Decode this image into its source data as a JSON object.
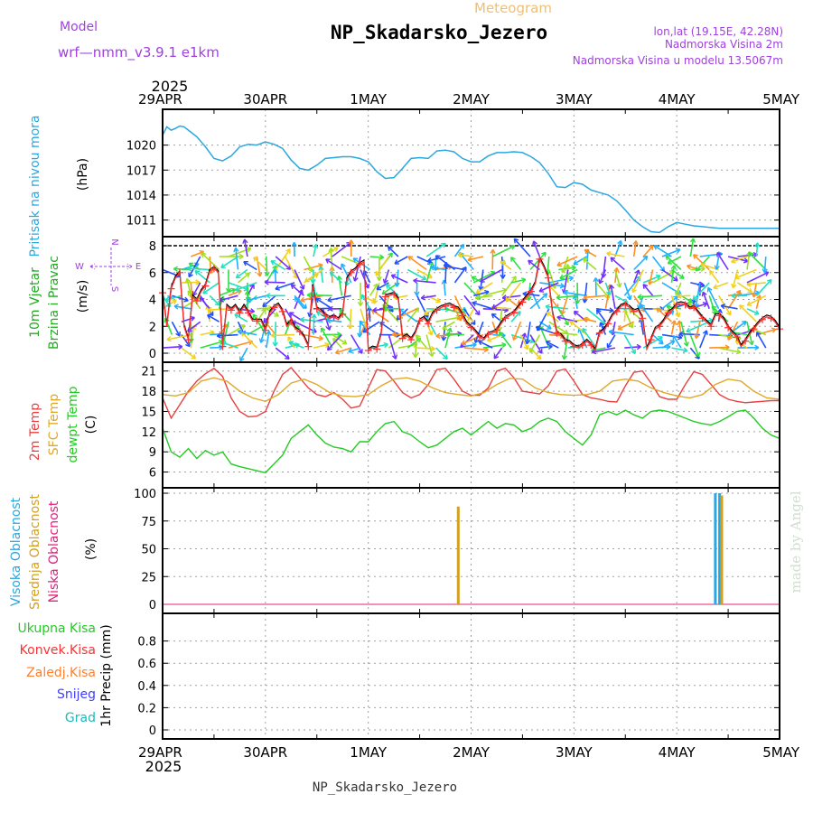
{
  "header": {
    "meteogram_label": "Meteogram",
    "title": "NP_Skadarsko_Jezero",
    "model_label": "Model",
    "model_name": "wrf—nmm_v3.9.1 e1km",
    "lonlat": "lon,lat (19.15E, 42.28N)",
    "elevation": "Nadmorska Visina 2m",
    "model_elevation": "Nadmorska Visina u modelu 13.5067m"
  },
  "footer": {
    "station": "NP_Skadarsko_Jezero",
    "credit": "made by Angel"
  },
  "time_axis": {
    "year": "2025",
    "labels": [
      "29APR",
      "30APR",
      "1MAY",
      "2MAY",
      "3MAY",
      "4MAY",
      "5MAY"
    ]
  },
  "colors": {
    "pressure": "#2aa7e0",
    "wind_speed": "#ff3030",
    "wind_direction_line": "#000000",
    "temp_2m": "#e84040",
    "temp_sfc": "#e0a828",
    "dewpoint": "#22cc22",
    "cloud_high": "#2aa7e0",
    "cloud_mid": "#d4a020",
    "cloud_low": "#e0207a",
    "precip_total": "#22cc22",
    "precip_conv": "#ff3030",
    "precip_frz": "#ff7f2a",
    "snow": "#4040ff",
    "graupel": "#20b8b8",
    "model_text": "#a040e0",
    "meteogram_text": "#f0c070"
  },
  "chart_data": [
    {
      "type": "line",
      "id": "pressure",
      "title": "Pritisak na nivou mora",
      "ylabel": "(hPa)",
      "ylim": [
        1009,
        1023
      ],
      "yticks": [
        1011,
        1014,
        1017,
        1020
      ],
      "xlim": [
        0,
        144
      ],
      "grid": true,
      "series": [
        {
          "name": "Pritisak na nivou mora",
          "x": [
            0,
            1,
            2,
            3,
            4,
            5,
            6,
            8,
            10,
            12,
            14,
            16,
            18,
            20,
            22,
            24,
            26,
            28,
            30,
            32,
            34,
            36,
            38,
            40,
            42,
            44,
            46,
            48,
            50,
            52,
            54,
            56,
            58,
            60,
            62,
            64,
            66,
            68,
            70,
            72,
            74,
            76,
            78,
            80,
            82,
            84,
            86,
            88,
            90,
            92,
            94,
            96,
            98,
            100,
            102,
            104,
            106,
            108,
            110,
            112,
            114,
            116,
            118,
            120,
            122,
            124,
            126,
            128,
            130,
            132,
            134,
            136,
            138,
            140,
            142,
            144
          ],
          "y": [
            1021.2,
            1022.2,
            1021.8,
            1022.0,
            1022.3,
            1022.2,
            1021.8,
            1021.0,
            1019.8,
            1018.4,
            1018.1,
            1018.7,
            1019.8,
            1020.1,
            1020.0,
            1020.4,
            1020.1,
            1019.6,
            1018.2,
            1017.2,
            1017.0,
            1017.6,
            1018.4,
            1018.5,
            1018.6,
            1018.6,
            1018.4,
            1018.0,
            1016.8,
            1016.0,
            1016.1,
            1017.2,
            1018.4,
            1018.5,
            1018.4,
            1019.3,
            1019.4,
            1019.2,
            1018.4,
            1018.0,
            1018.0,
            1018.7,
            1019.1,
            1019.1,
            1019.2,
            1019.1,
            1018.6,
            1017.9,
            1016.6,
            1015.0,
            1014.9,
            1015.5,
            1015.3,
            1014.6,
            1014.3,
            1014.0,
            1013.3,
            1012.2,
            1011.0,
            1010.2,
            1009.6,
            1009.5,
            1010.2,
            1010.7,
            1010.5,
            1010.3,
            1010.2,
            1010.1,
            1010.0,
            1010.0,
            1010.0,
            1010.0,
            1010.0,
            1010.0,
            1010.0,
            1010.0
          ]
        }
      ]
    },
    {
      "type": "line",
      "id": "wind",
      "title": "10m Vjetar Brzina i Pravac",
      "ylabel": "(m/s)",
      "ylim": [
        0,
        8
      ],
      "yticks": [
        0,
        2,
        4,
        6,
        8
      ],
      "xlim": [
        0,
        144
      ],
      "grid": true,
      "compass": {
        "north": "N",
        "south": "S",
        "west": "W",
        "east": "E"
      },
      "series": [
        {
          "name": "10m Vjetar",
          "x": [
            0,
            1,
            2,
            3,
            4,
            5,
            6,
            7,
            8,
            9,
            10,
            11,
            12,
            13,
            14,
            15,
            16,
            17,
            18,
            19,
            20,
            21,
            22,
            23,
            24,
            25,
            26,
            27,
            28,
            29,
            30,
            31,
            32,
            33,
            34,
            35,
            36,
            37,
            38,
            39,
            40,
            41,
            42,
            43,
            44,
            45,
            46,
            47,
            48,
            49,
            50,
            51,
            52,
            53,
            54,
            55,
            56,
            57,
            58,
            59,
            60,
            61,
            62,
            63,
            64,
            65,
            66,
            67,
            68,
            69,
            70,
            71,
            72,
            73,
            74,
            75,
            76,
            77,
            78,
            79,
            80,
            81,
            82,
            83,
            84,
            85,
            86,
            87,
            88,
            89,
            90,
            91,
            92,
            93,
            94,
            95,
            96,
            97,
            98,
            99,
            100,
            101,
            102,
            103,
            104,
            105,
            106,
            107,
            108,
            109,
            110,
            111,
            112,
            113,
            114,
            115,
            116,
            117,
            118,
            119,
            120,
            121,
            122,
            123,
            124,
            125,
            126,
            127,
            128,
            129,
            130,
            131,
            132,
            133,
            134,
            135,
            136,
            137,
            138,
            139,
            140,
            141,
            142,
            143,
            144
          ],
          "y": [
            4.5,
            2.0,
            4.8,
            5.6,
            6.0,
            2.0,
            1.0,
            4.2,
            3.9,
            4.6,
            5.0,
            6.1,
            6.3,
            6.0,
            0.5,
            3.5,
            3.2,
            3.5,
            3.0,
            3.5,
            3.0,
            2.4,
            2.4,
            2.4,
            1.7,
            3.0,
            3.4,
            3.6,
            3.1,
            2.0,
            2.4,
            1.8,
            1.6,
            1.2,
            0.5,
            5.0,
            3.3,
            3.1,
            2.8,
            2.6,
            2.7,
            2.5,
            2.9,
            5.5,
            6.0,
            6.2,
            6.6,
            6.8,
            0.2,
            0.4,
            0.3,
            1.4,
            4.2,
            4.3,
            4.4,
            4.0,
            1.1,
            1.3,
            1.0,
            1.5,
            2.4,
            2.6,
            2.2,
            2.9,
            3.2,
            3.4,
            3.5,
            3.6,
            3.4,
            3.3,
            2.8,
            2.2,
            1.9,
            1.6,
            1.2,
            1.0,
            1.4,
            1.5,
            1.7,
            2.2,
            2.6,
            2.8,
            3.0,
            3.4,
            3.8,
            4.2,
            4.6,
            5.2,
            7.0,
            6.4,
            5.6,
            3.0,
            1.5,
            1.3,
            0.9,
            0.8,
            0.5,
            0.4,
            0.6,
            0.9,
            0.6,
            0.2,
            1.5,
            1.7,
            2.2,
            2.8,
            3.1,
            3.5,
            3.6,
            3.4,
            3.1,
            3.2,
            2.6,
            0.3,
            1.0,
            1.8,
            2.0,
            2.4,
            3.0,
            3.2,
            3.6,
            3.7,
            3.6,
            3.3,
            3.4,
            3.0,
            2.6,
            2.3,
            2.0,
            2.8,
            2.8,
            2.5,
            1.9,
            1.5,
            1.2,
            0.5,
            0.9,
            1.4,
            1.8,
            2.2,
            2.5,
            2.7,
            2.6,
            2.3,
            1.8
          ]
        }
      ]
    },
    {
      "type": "line",
      "id": "temperature",
      "ylabel": "(C)",
      "ylim": [
        5,
        21.5
      ],
      "yticks": [
        6,
        9,
        12,
        15,
        18,
        21
      ],
      "xlim": [
        0,
        144
      ],
      "grid": true,
      "series": [
        {
          "name": "2m Temp",
          "x": [
            0,
            2,
            4,
            6,
            8,
            10,
            12,
            14,
            16,
            18,
            20,
            22,
            24,
            26,
            28,
            30,
            32,
            34,
            36,
            38,
            40,
            42,
            44,
            46,
            48,
            50,
            52,
            54,
            56,
            58,
            60,
            62,
            64,
            66,
            68,
            70,
            72,
            74,
            76,
            78,
            80,
            82,
            84,
            86,
            88,
            90,
            92,
            94,
            96,
            98,
            100,
            102,
            104,
            106,
            108,
            110,
            112,
            114,
            116,
            118,
            120,
            122,
            124,
            126,
            128,
            130,
            132,
            134,
            136,
            138,
            140,
            142,
            144
          ],
          "y": [
            17.0,
            14.0,
            16.0,
            18.0,
            19.5,
            20.6,
            21.4,
            20.2,
            17.0,
            15.0,
            14.2,
            14.3,
            15.0,
            18.0,
            20.5,
            21.5,
            20.0,
            18.5,
            17.5,
            17.2,
            17.8,
            16.8,
            15.5,
            15.8,
            18.5,
            21.2,
            21.0,
            19.5,
            17.8,
            17.0,
            17.5,
            19.0,
            21.2,
            21.4,
            19.8,
            18.0,
            17.4,
            17.4,
            18.5,
            21.0,
            21.4,
            20.0,
            18.0,
            17.8,
            17.6,
            18.8,
            21.0,
            21.3,
            19.5,
            17.5,
            17.0,
            16.8,
            16.5,
            16.4,
            18.8,
            20.8,
            21.0,
            19.2,
            17.2,
            16.8,
            16.8,
            19.0,
            20.9,
            20.5,
            19.0,
            17.5,
            16.8,
            16.5,
            16.3,
            16.4,
            16.5,
            16.6,
            16.6
          ]
        },
        {
          "name": "SFC Temp",
          "x": [
            0,
            3,
            6,
            9,
            12,
            15,
            18,
            21,
            24,
            27,
            30,
            33,
            36,
            39,
            42,
            45,
            48,
            51,
            54,
            57,
            60,
            63,
            66,
            69,
            72,
            75,
            78,
            81,
            84,
            87,
            90,
            93,
            96,
            99,
            102,
            105,
            108,
            111,
            114,
            117,
            120,
            123,
            126,
            129,
            132,
            135,
            138,
            141,
            144
          ],
          "y": [
            17.5,
            17.3,
            17.8,
            19.5,
            20.0,
            19.5,
            18.0,
            17.0,
            16.5,
            17.5,
            19.2,
            19.8,
            19.0,
            17.8,
            17.3,
            17.2,
            17.5,
            18.8,
            19.8,
            20.0,
            19.5,
            18.5,
            17.8,
            17.5,
            17.3,
            17.8,
            19.0,
            19.9,
            19.8,
            18.5,
            17.8,
            17.5,
            17.4,
            17.5,
            18.0,
            19.5,
            19.8,
            19.5,
            18.5,
            17.8,
            17.3,
            17.0,
            17.5,
            19.0,
            19.8,
            19.5,
            18.0,
            17.0,
            16.8
          ]
        },
        {
          "name": "dewpt Temp",
          "x": [
            0,
            2,
            4,
            6,
            8,
            10,
            12,
            14,
            16,
            18,
            20,
            22,
            24,
            26,
            28,
            30,
            32,
            34,
            36,
            38,
            40,
            42,
            44,
            46,
            48,
            50,
            52,
            54,
            56,
            58,
            60,
            62,
            64,
            66,
            68,
            70,
            72,
            74,
            76,
            78,
            80,
            82,
            84,
            86,
            88,
            90,
            92,
            94,
            96,
            98,
            100,
            102,
            104,
            106,
            108,
            110,
            112,
            114,
            116,
            118,
            120,
            122,
            124,
            126,
            128,
            130,
            132,
            134,
            136,
            138,
            140,
            142,
            144
          ],
          "y": [
            12.5,
            9.0,
            8.2,
            9.5,
            8.0,
            9.2,
            8.5,
            9.0,
            7.2,
            6.8,
            6.5,
            6.2,
            5.9,
            7.2,
            8.5,
            11.0,
            12.0,
            13.0,
            11.5,
            10.3,
            9.7,
            9.5,
            9.0,
            10.5,
            10.5,
            12.0,
            13.2,
            13.5,
            12.0,
            11.5,
            10.5,
            9.6,
            10.0,
            11.0,
            12.0,
            12.5,
            11.5,
            12.5,
            13.5,
            12.5,
            13.2,
            13.0,
            12.0,
            12.5,
            13.5,
            14.0,
            13.5,
            12.0,
            11.0,
            10.0,
            11.5,
            14.5,
            15.0,
            14.5,
            15.2,
            14.5,
            14.0,
            15.0,
            15.2,
            15.0,
            14.5,
            14.0,
            13.5,
            13.2,
            13.0,
            13.5,
            14.2,
            15.0,
            15.2,
            14.0,
            12.5,
            11.5,
            11.0
          ]
        }
      ]
    },
    {
      "type": "bar",
      "id": "clouds",
      "ylabel": "(%)",
      "ylim": [
        0,
        100
      ],
      "yticks": [
        0,
        25,
        50,
        75,
        100
      ],
      "xlim": [
        0,
        144
      ],
      "grid": true,
      "series": [
        {
          "name": "Visoka Oblacnost",
          "x": [
            129,
            130
          ],
          "values": [
            100,
            100
          ]
        },
        {
          "name": "Srednja Oblacnost",
          "x": [
            69,
            130.5
          ],
          "values": [
            88,
            98
          ]
        },
        {
          "name": "Niska Oblacnost",
          "x": [],
          "values": []
        }
      ]
    },
    {
      "type": "bar",
      "id": "precip",
      "ylabel": "1hr Precip (mm)",
      "ylim": [
        0,
        1
      ],
      "yticks": [
        0,
        0.2,
        0.4,
        0.6,
        0.8
      ],
      "xlim": [
        0,
        144
      ],
      "grid": true,
      "series": [
        {
          "name": "Ukupna Kisa",
          "x": [],
          "values": []
        },
        {
          "name": "Konvek.Kisa",
          "x": [],
          "values": []
        },
        {
          "name": "Zaledj.Kisa",
          "x": [],
          "values": []
        },
        {
          "name": "Snijeg",
          "x": [],
          "values": []
        },
        {
          "name": "Grad",
          "x": [],
          "values": []
        }
      ]
    }
  ]
}
